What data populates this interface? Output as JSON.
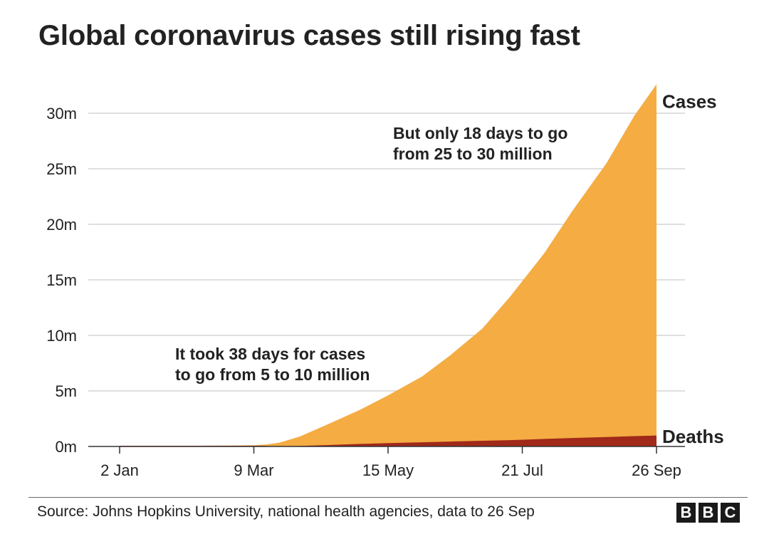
{
  "title": "Global coronavirus cases still rising fast",
  "footer": {
    "source": "Source: Johns Hopkins University, national health agencies, data to 26 Sep",
    "logo_letters": [
      "B",
      "B",
      "C"
    ]
  },
  "colors": {
    "cases": "#F4AC43",
    "deaths": "#A0291A",
    "grid": "#CCCCCC",
    "axis": "#333333",
    "text": "#222222"
  },
  "chart_data": {
    "type": "area",
    "x_ticks": [
      "2 Jan",
      "9 Mar",
      "15 May",
      "21 Jul",
      "26 Sep"
    ],
    "y_ticks": [
      "0m",
      "5m",
      "10m",
      "15m",
      "20m",
      "25m",
      "30m"
    ],
    "ylim": [
      0,
      32.5
    ],
    "y_unit": "million",
    "grid": "horizontal",
    "x": [
      "2020-01-02",
      "2020-01-22",
      "2020-02-15",
      "2020-03-01",
      "2020-03-09",
      "2020-03-15",
      "2020-03-22",
      "2020-04-01",
      "2020-04-15",
      "2020-05-01",
      "2020-05-15",
      "2020-06-01",
      "2020-06-15",
      "2020-07-01",
      "2020-07-15",
      "2020-08-01",
      "2020-08-15",
      "2020-09-01",
      "2020-09-15",
      "2020-09-26"
    ],
    "series": [
      {
        "name": "Cases",
        "values": [
          0,
          0,
          0.07,
          0.09,
          0.11,
          0.17,
          0.35,
          0.9,
          2.0,
          3.3,
          4.6,
          6.3,
          8.2,
          10.6,
          13.5,
          17.4,
          21.2,
          25.5,
          29.8,
          32.6
        ]
      },
      {
        "name": "Deaths",
        "values": [
          0,
          0,
          0,
          0,
          0,
          0.01,
          0.015,
          0.05,
          0.13,
          0.23,
          0.31,
          0.38,
          0.44,
          0.51,
          0.57,
          0.68,
          0.76,
          0.85,
          0.93,
          0.99
        ]
      }
    ],
    "annotations": [
      {
        "lines": [
          "It took 38 days for cases",
          "to go from 5 to 10 million"
        ]
      },
      {
        "lines": [
          "But only 18 days to go",
          "from 25 to 30 million"
        ]
      }
    ]
  }
}
